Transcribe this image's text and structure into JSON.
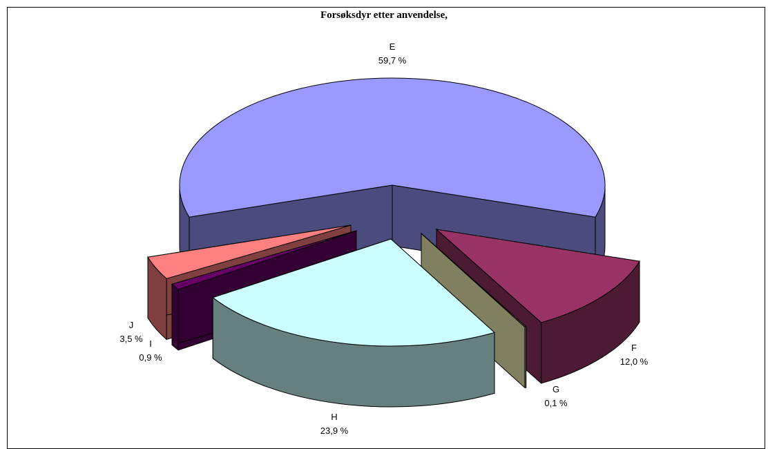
{
  "chart_data": {
    "type": "pie",
    "title": "Forsøksdyr etter anvendelse,",
    "slices": [
      {
        "name": "E",
        "value": 59.7,
        "label": "59,7 %",
        "color": "#9999ff",
        "side_color": "#4b4b7d"
      },
      {
        "name": "F",
        "value": 12.0,
        "label": "12,0 %",
        "color": "#993366",
        "side_color": "#4c1a33"
      },
      {
        "name": "G",
        "value": 0.1,
        "label": "0,1 %",
        "color": "#808060",
        "side_color": "#808060"
      },
      {
        "name": "H",
        "value": 23.9,
        "label": "23,9 %",
        "color": "#ccffff",
        "side_color": "#668080"
      },
      {
        "name": "I",
        "value": 0.9,
        "label": "0,9 %",
        "color": "#660066",
        "side_color": "#330033"
      },
      {
        "name": "J",
        "value": 3.5,
        "label": "3,5 %",
        "color": "#ff8080",
        "side_color": "#804040"
      }
    ]
  }
}
